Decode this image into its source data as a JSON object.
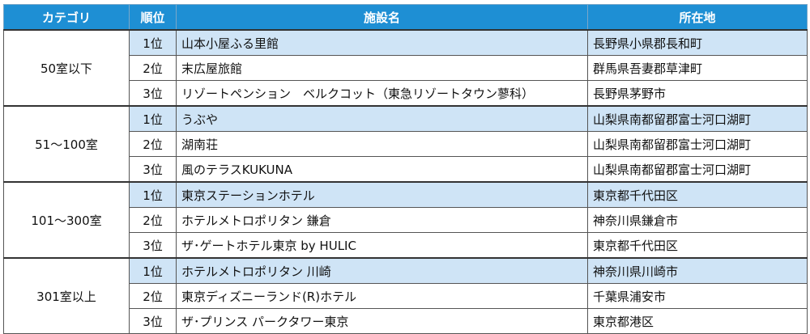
{
  "headers": {
    "category": "カテゴリ",
    "rank": "順位",
    "facility": "施設名",
    "location": "所在地"
  },
  "groups": [
    {
      "category": "50室以下",
      "rows": [
        {
          "rank": "1位",
          "name": "山本小屋ふる里館",
          "location": "長野県小県郡長和町"
        },
        {
          "rank": "2位",
          "name": "末広屋旅館",
          "location": "群馬県吾妻郡草津町"
        },
        {
          "rank": "3位",
          "name": "リゾートペンション　ベルクコット（東急リゾートタウン蓼科）",
          "location": "長野県茅野市"
        }
      ]
    },
    {
      "category": "51～100室",
      "rows": [
        {
          "rank": "1位",
          "name": "うぶや",
          "location": "山梨県南都留郡富士河口湖町"
        },
        {
          "rank": "2位",
          "name": "湖南荘",
          "location": "山梨県南都留郡富士河口湖町"
        },
        {
          "rank": "3位",
          "name": "風のテラスKUKUNA",
          "location": "山梨県南都留郡富士河口湖町"
        }
      ]
    },
    {
      "category": "101～300室",
      "rows": [
        {
          "rank": "1位",
          "name": "東京ステーションホテル",
          "location": "東京都千代田区"
        },
        {
          "rank": "2位",
          "name": "ホテルメトロポリタン 鎌倉",
          "location": "神奈川県鎌倉市"
        },
        {
          "rank": "3位",
          "name": "ザ･ゲートホテル東京 by HULIC",
          "location": "東京都千代田区"
        }
      ]
    },
    {
      "category": "301室以上",
      "rows": [
        {
          "rank": "1位",
          "name": "ホテルメトロポリタン 川崎",
          "location": "神奈川県川崎市"
        },
        {
          "rank": "2位",
          "name": "東京ディズニーランド(R)ホテル",
          "location": "千葉県浦安市"
        },
        {
          "rank": "3位",
          "name": "ザ･プリンス パークタワー東京",
          "location": "東京都港区"
        }
      ]
    }
  ]
}
